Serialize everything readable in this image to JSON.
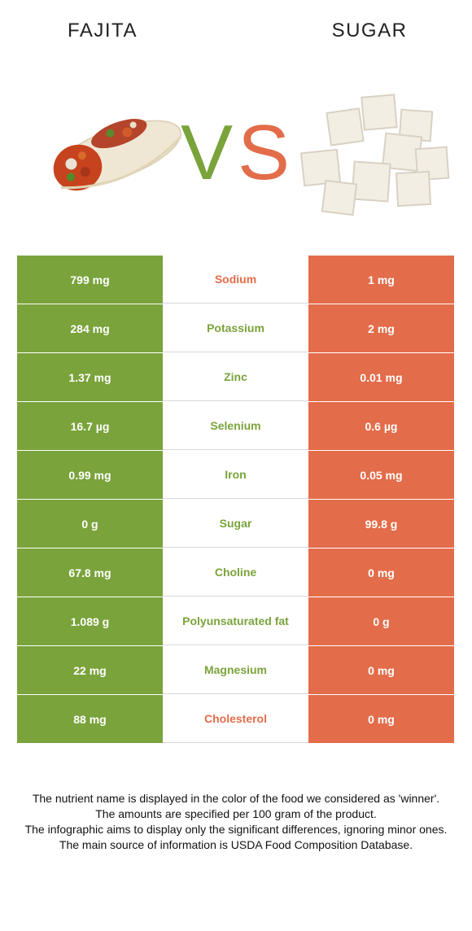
{
  "header": {
    "left_food": "FAJITA",
    "right_food": "SUGAR",
    "vs_left_letter": "V",
    "vs_right_letter": "S"
  },
  "colors": {
    "left_food": "#7aa33b",
    "right_food": "#e36c4a",
    "neutral_text": "#222222"
  },
  "rows": [
    {
      "left": "799 mg",
      "nutrient": "Sodium",
      "right": "1 mg",
      "winner": "right"
    },
    {
      "left": "284 mg",
      "nutrient": "Potassium",
      "right": "2 mg",
      "winner": "left"
    },
    {
      "left": "1.37 mg",
      "nutrient": "Zinc",
      "right": "0.01 mg",
      "winner": "left"
    },
    {
      "left": "16.7 µg",
      "nutrient": "Selenium",
      "right": "0.6 µg",
      "winner": "left"
    },
    {
      "left": "0.99 mg",
      "nutrient": "Iron",
      "right": "0.05 mg",
      "winner": "left"
    },
    {
      "left": "0 g",
      "nutrient": "Sugar",
      "right": "99.8 g",
      "winner": "left"
    },
    {
      "left": "67.8 mg",
      "nutrient": "Choline",
      "right": "0 mg",
      "winner": "left"
    },
    {
      "left": "1.089 g",
      "nutrient": "Polyunsaturated fat",
      "right": "0 g",
      "winner": "left"
    },
    {
      "left": "22 mg",
      "nutrient": "Magnesium",
      "right": "0 mg",
      "winner": "left"
    },
    {
      "left": "88 mg",
      "nutrient": "Cholesterol",
      "right": "0 mg",
      "winner": "right"
    }
  ],
  "footer": {
    "line1": "The nutrient name is displayed in the color of the food we considered as 'winner'.",
    "line2": "The amounts are specified per 100 gram of the product.",
    "line3": "The infographic aims to display only the significant differences, ignoring minor ones.",
    "line4": "The main source of information is USDA Food Composition Database."
  },
  "images": {
    "left": "fajita-wrap-image",
    "right": "sugar-cubes-image"
  }
}
